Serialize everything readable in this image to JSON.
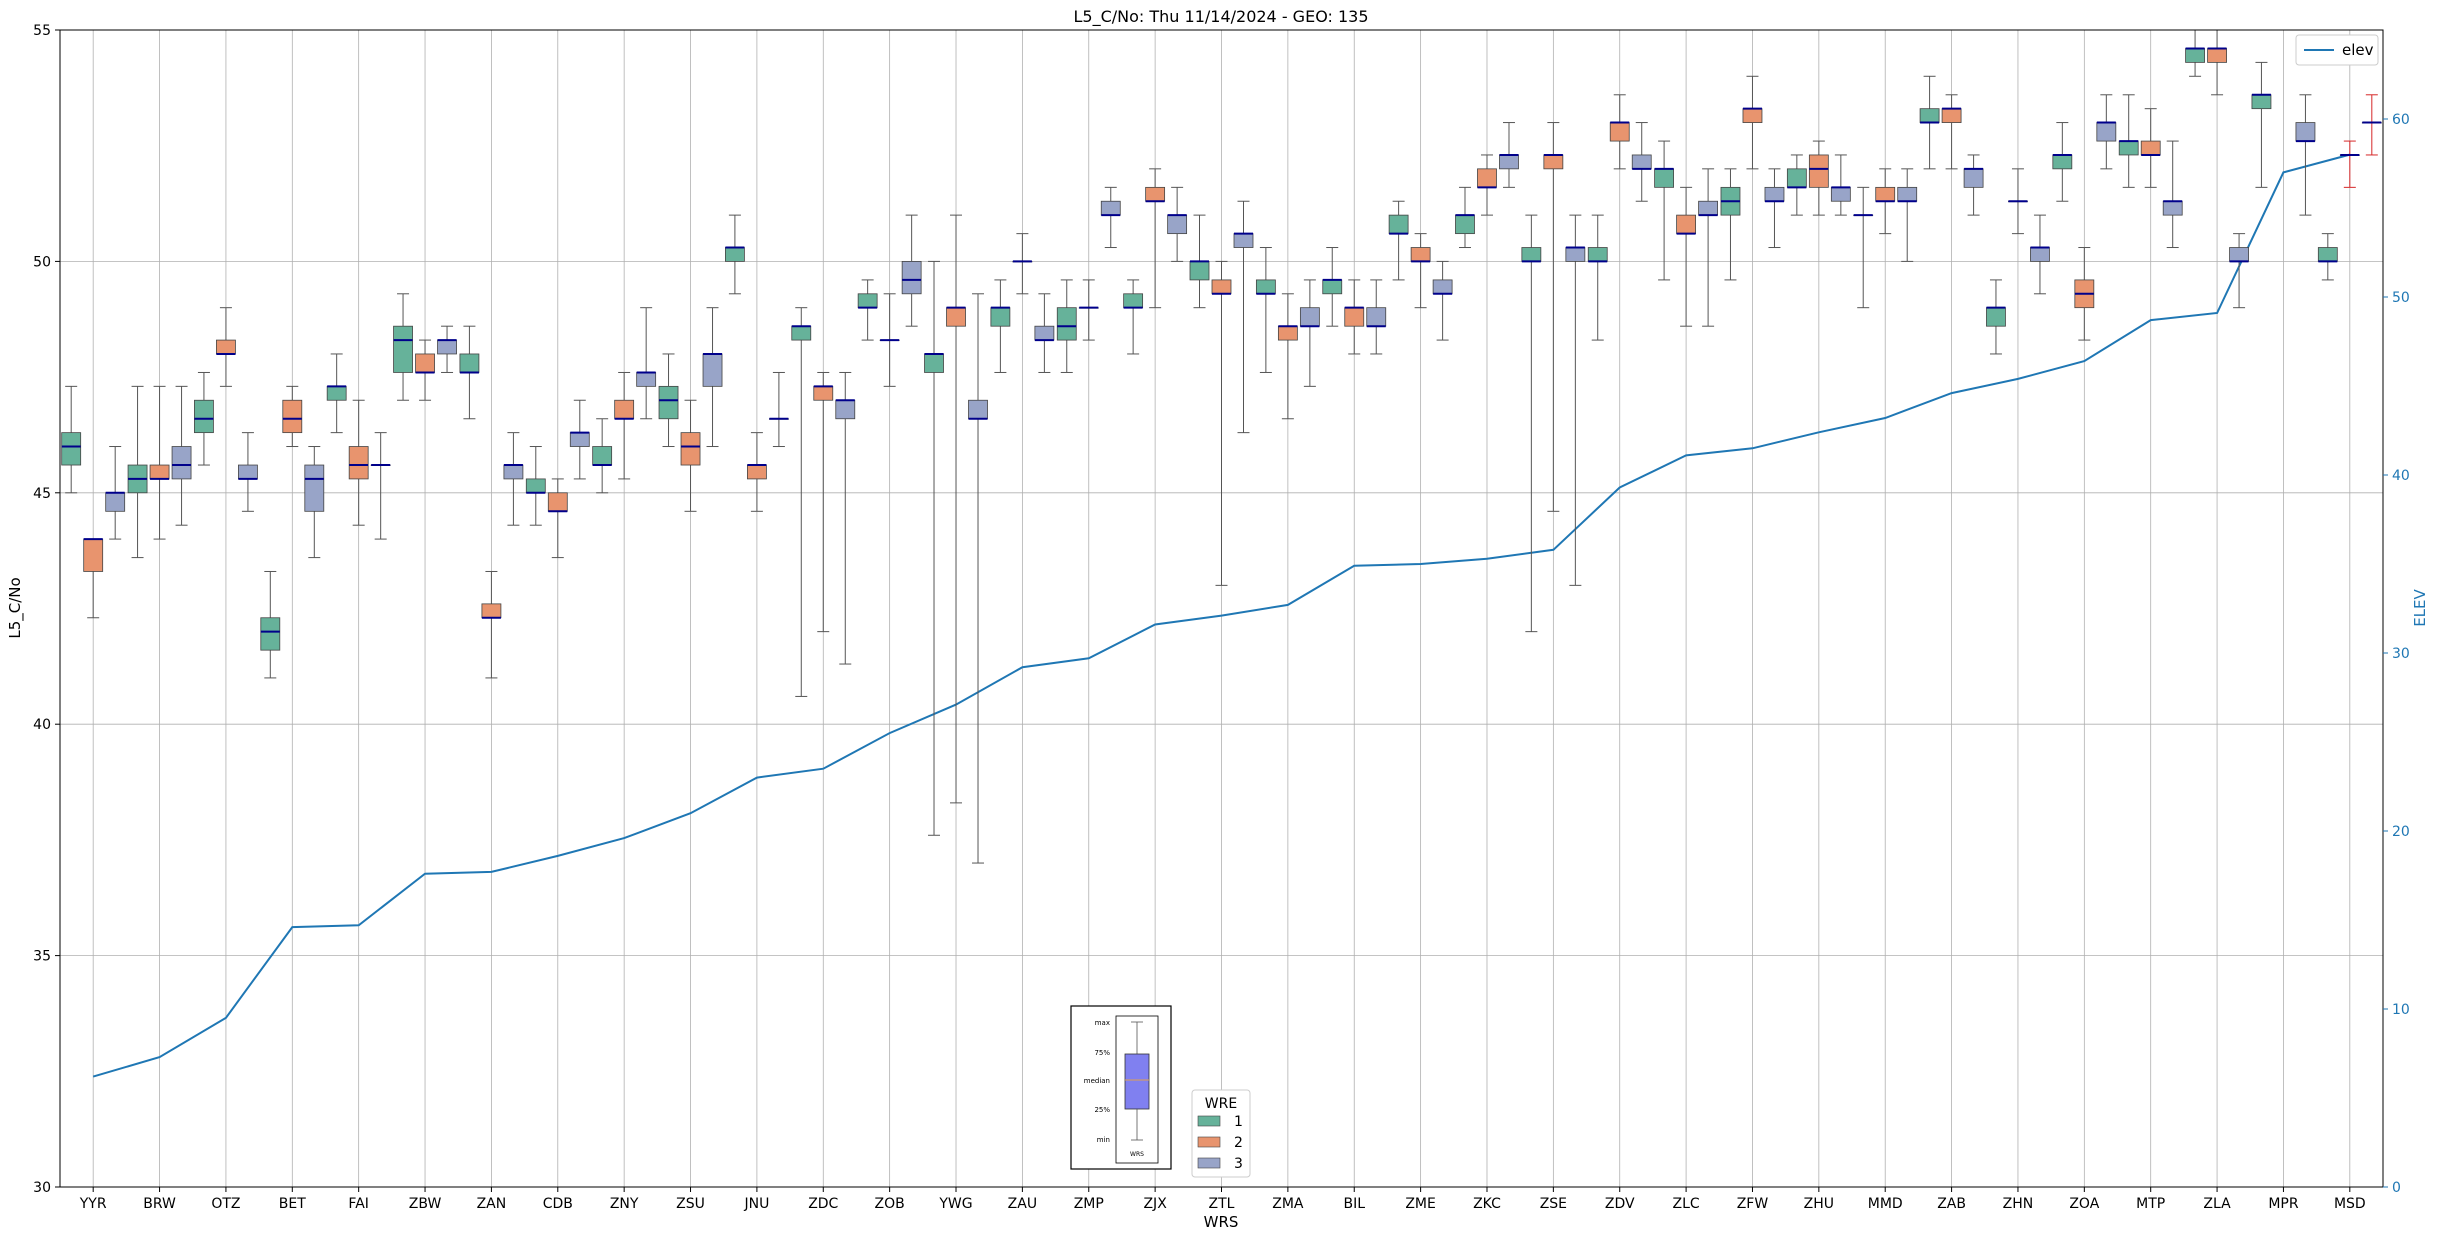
{
  "chart_data": {
    "type": "box+line",
    "title": "L5_C/No: Thu 11/14/2024 - GEO: 135",
    "xlabel": "WRS",
    "ylabel": "L5_C/No",
    "y2label": "ELEV",
    "ylim": [
      30,
      55
    ],
    "y2lim": [
      0,
      65
    ],
    "yticks": [
      30,
      35,
      40,
      45,
      50,
      55
    ],
    "y2ticks": [
      0,
      10,
      20,
      30,
      40,
      50,
      60
    ],
    "grid": true,
    "categories": [
      "YYR",
      "BRW",
      "OTZ",
      "BET",
      "FAI",
      "ZBW",
      "ZAN",
      "CDB",
      "ZNY",
      "ZSU",
      "JNU",
      "ZDC",
      "ZOB",
      "YWG",
      "ZAU",
      "ZMP",
      "ZJX",
      "ZTL",
      "ZMA",
      "BIL",
      "ZME",
      "ZKC",
      "ZSE",
      "ZDV",
      "ZLC",
      "ZFW",
      "ZHU",
      "MMD",
      "ZAB",
      "ZHN",
      "ZOA",
      "MTP",
      "ZLA",
      "MPR",
      "MSD"
    ],
    "elev_series": {
      "name": "elev",
      "values": [
        6.2,
        7.3,
        9.5,
        14.6,
        14.7,
        17.6,
        17.7,
        18.6,
        19.6,
        21.0,
        23.0,
        23.5,
        25.5,
        27.1,
        29.2,
        29.7,
        31.6,
        32.1,
        32.7,
        34.9,
        35.0,
        35.3,
        35.8,
        39.3,
        41.1,
        41.5,
        42.4,
        43.2,
        44.6,
        45.4,
        46.4,
        48.7,
        49.1,
        57.0,
        58.0
      ]
    },
    "wre_series": [
      {
        "name": "1",
        "color": "#66b29a"
      },
      {
        "name": "2",
        "color": "#e8946e"
      },
      {
        "name": "3",
        "color": "#98a4c8"
      }
    ],
    "boxes": [
      {
        "station": "YYR",
        "wre": "1",
        "min": 45.0,
        "q1": 45.6,
        "median": 46.0,
        "q3": 46.3,
        "max": 47.3
      },
      {
        "station": "YYR",
        "wre": "2",
        "min": 42.3,
        "q1": 43.3,
        "median": 44.0,
        "q3": 44.0,
        "max": 44.0
      },
      {
        "station": "YYR",
        "wre": "3",
        "min": 44.0,
        "q1": 44.6,
        "median": 45.0,
        "q3": 45.0,
        "max": 46.0
      },
      {
        "station": "BRW",
        "wre": "1",
        "min": 43.6,
        "q1": 45.0,
        "median": 45.3,
        "q3": 45.6,
        "max": 47.3
      },
      {
        "station": "BRW",
        "wre": "2",
        "min": 44.0,
        "q1": 45.3,
        "median": 45.3,
        "q3": 45.6,
        "max": 47.3
      },
      {
        "station": "BRW",
        "wre": "3",
        "min": 44.3,
        "q1": 45.3,
        "median": 45.6,
        "q3": 46.0,
        "max": 47.3
      },
      {
        "station": "OTZ",
        "wre": "1",
        "min": 45.6,
        "q1": 46.3,
        "median": 46.6,
        "q3": 47.0,
        "max": 47.6
      },
      {
        "station": "OTZ",
        "wre": "2",
        "min": 47.3,
        "q1": 48.0,
        "median": 48.0,
        "q3": 48.3,
        "max": 49.0
      },
      {
        "station": "OTZ",
        "wre": "3",
        "min": 44.6,
        "q1": 45.3,
        "median": 45.3,
        "q3": 45.6,
        "max": 46.3
      },
      {
        "station": "BET",
        "wre": "1",
        "min": 41.0,
        "q1": 41.6,
        "median": 42.0,
        "q3": 42.3,
        "max": 43.3
      },
      {
        "station": "BET",
        "wre": "2",
        "min": 46.0,
        "q1": 46.3,
        "median": 46.6,
        "q3": 47.0,
        "max": 47.3
      },
      {
        "station": "BET",
        "wre": "3",
        "min": 43.6,
        "q1": 44.6,
        "median": 45.3,
        "q3": 45.6,
        "max": 46.0
      },
      {
        "station": "FAI",
        "wre": "1",
        "min": 46.3,
        "q1": 47.0,
        "median": 47.3,
        "q3": 47.3,
        "max": 48.0
      },
      {
        "station": "FAI",
        "wre": "2",
        "min": 44.3,
        "q1": 45.3,
        "median": 45.6,
        "q3": 46.0,
        "max": 47.0
      },
      {
        "station": "FAI",
        "wre": "3",
        "min": 44.0,
        "q1": 45.6,
        "median": 45.6,
        "q3": 45.6,
        "max": 46.3
      },
      {
        "station": "ZBW",
        "wre": "1",
        "min": 47.0,
        "q1": 47.6,
        "median": 48.3,
        "q3": 48.6,
        "max": 49.3
      },
      {
        "station": "ZBW",
        "wre": "2",
        "min": 47.0,
        "q1": 47.6,
        "median": 47.6,
        "q3": 48.0,
        "max": 48.3
      },
      {
        "station": "ZBW",
        "wre": "3",
        "min": 47.6,
        "q1": 48.0,
        "median": 48.3,
        "q3": 48.3,
        "max": 48.6
      },
      {
        "station": "ZAN",
        "wre": "1",
        "min": 46.6,
        "q1": 47.6,
        "median": 47.6,
        "q3": 48.0,
        "max": 48.6
      },
      {
        "station": "ZAN",
        "wre": "2",
        "min": 41.0,
        "q1": 42.3,
        "median": 42.3,
        "q3": 42.6,
        "max": 43.3
      },
      {
        "station": "ZAN",
        "wre": "3",
        "min": 44.3,
        "q1": 45.3,
        "median": 45.6,
        "q3": 45.6,
        "max": 46.3
      },
      {
        "station": "CDB",
        "wre": "1",
        "min": 44.3,
        "q1": 45.0,
        "median": 45.0,
        "q3": 45.3,
        "max": 46.0
      },
      {
        "station": "CDB",
        "wre": "2",
        "min": 43.6,
        "q1": 44.6,
        "median": 44.6,
        "q3": 45.0,
        "max": 45.3
      },
      {
        "station": "CDB",
        "wre": "3",
        "min": 45.3,
        "q1": 46.0,
        "median": 46.3,
        "q3": 46.3,
        "max": 47.0
      },
      {
        "station": "ZNY",
        "wre": "1",
        "min": 45.0,
        "q1": 45.6,
        "median": 45.6,
        "q3": 46.0,
        "max": 46.6
      },
      {
        "station": "ZNY",
        "wre": "2",
        "min": 45.3,
        "q1": 46.6,
        "median": 46.6,
        "q3": 47.0,
        "max": 47.6
      },
      {
        "station": "ZNY",
        "wre": "3",
        "min": 46.6,
        "q1": 47.3,
        "median": 47.6,
        "q3": 47.6,
        "max": 49.0
      },
      {
        "station": "ZSU",
        "wre": "1",
        "min": 46.0,
        "q1": 46.6,
        "median": 47.0,
        "q3": 47.3,
        "max": 48.0
      },
      {
        "station": "ZSU",
        "wre": "2",
        "min": 44.6,
        "q1": 45.6,
        "median": 46.0,
        "q3": 46.3,
        "max": 47.0
      },
      {
        "station": "ZSU",
        "wre": "3",
        "min": 46.0,
        "q1": 47.3,
        "median": 48.0,
        "q3": 48.0,
        "max": 49.0
      },
      {
        "station": "JNU",
        "wre": "1",
        "min": 49.3,
        "q1": 50.0,
        "median": 50.3,
        "q3": 50.3,
        "max": 51.0
      },
      {
        "station": "JNU",
        "wre": "2",
        "min": 44.6,
        "q1": 45.3,
        "median": 45.6,
        "q3": 45.6,
        "max": 46.3
      },
      {
        "station": "JNU",
        "wre": "3",
        "min": 46.0,
        "q1": 46.6,
        "median": 46.6,
        "q3": 46.6,
        "max": 47.6
      },
      {
        "station": "ZDC",
        "wre": "1",
        "min": 40.6,
        "q1": 48.3,
        "median": 48.6,
        "q3": 48.6,
        "max": 49.0
      },
      {
        "station": "ZDC",
        "wre": "2",
        "min": 42.0,
        "q1": 47.0,
        "median": 47.3,
        "q3": 47.3,
        "max": 47.6
      },
      {
        "station": "ZDC",
        "wre": "3",
        "min": 41.3,
        "q1": 46.6,
        "median": 47.0,
        "q3": 47.0,
        "max": 47.6
      },
      {
        "station": "ZOB",
        "wre": "1",
        "min": 48.3,
        "q1": 49.0,
        "median": 49.0,
        "q3": 49.3,
        "max": 49.6
      },
      {
        "station": "ZOB",
        "wre": "2",
        "min": 47.3,
        "q1": 48.3,
        "median": 48.3,
        "q3": 48.3,
        "max": 49.3
      },
      {
        "station": "ZOB",
        "wre": "3",
        "min": 48.6,
        "q1": 49.3,
        "median": 49.6,
        "q3": 50.0,
        "max": 51.0
      },
      {
        "station": "YWG",
        "wre": "1",
        "min": 37.6,
        "q1": 47.6,
        "median": 48.0,
        "q3": 48.0,
        "max": 50.0
      },
      {
        "station": "YWG",
        "wre": "2",
        "min": 38.3,
        "q1": 48.6,
        "median": 49.0,
        "q3": 49.0,
        "max": 51.0
      },
      {
        "station": "YWG",
        "wre": "3",
        "min": 37.0,
        "q1": 46.6,
        "median": 46.6,
        "q3": 47.0,
        "max": 49.3
      },
      {
        "station": "ZAU",
        "wre": "1",
        "min": 47.6,
        "q1": 48.6,
        "median": 49.0,
        "q3": 49.0,
        "max": 49.6
      },
      {
        "station": "ZAU",
        "wre": "2",
        "min": 49.3,
        "q1": 50.0,
        "median": 50.0,
        "q3": 50.0,
        "max": 50.6
      },
      {
        "station": "ZAU",
        "wre": "3",
        "min": 47.6,
        "q1": 48.3,
        "median": 48.3,
        "q3": 48.6,
        "max": 49.3
      },
      {
        "station": "ZMP",
        "wre": "1",
        "min": 47.6,
        "q1": 48.3,
        "median": 48.6,
        "q3": 49.0,
        "max": 49.6
      },
      {
        "station": "ZMP",
        "wre": "2",
        "min": 48.3,
        "q1": 49.0,
        "median": 49.0,
        "q3": 49.0,
        "max": 49.6
      },
      {
        "station": "ZMP",
        "wre": "3",
        "min": 50.3,
        "q1": 51.0,
        "median": 51.0,
        "q3": 51.3,
        "max": 51.6
      },
      {
        "station": "ZJX",
        "wre": "1",
        "min": 48.0,
        "q1": 49.0,
        "median": 49.0,
        "q3": 49.3,
        "max": 49.6
      },
      {
        "station": "ZJX",
        "wre": "2",
        "min": 49.0,
        "q1": 51.3,
        "median": 51.3,
        "q3": 51.6,
        "max": 52.0
      },
      {
        "station": "ZJX",
        "wre": "3",
        "min": 50.0,
        "q1": 50.6,
        "median": 51.0,
        "q3": 51.0,
        "max": 51.6
      },
      {
        "station": "ZTL",
        "wre": "1",
        "min": 49.0,
        "q1": 49.6,
        "median": 50.0,
        "q3": 50.0,
        "max": 51.0
      },
      {
        "station": "ZTL",
        "wre": "2",
        "min": 43.0,
        "q1": 49.3,
        "median": 49.3,
        "q3": 49.6,
        "max": 50.0
      },
      {
        "station": "ZTL",
        "wre": "3",
        "min": 46.3,
        "q1": 50.3,
        "median": 50.6,
        "q3": 50.6,
        "max": 51.3
      },
      {
        "station": "ZMA",
        "wre": "1",
        "min": 47.6,
        "q1": 49.3,
        "median": 49.3,
        "q3": 49.6,
        "max": 50.3
      },
      {
        "station": "ZMA",
        "wre": "2",
        "min": 46.6,
        "q1": 48.3,
        "median": 48.6,
        "q3": 48.6,
        "max": 49.3
      },
      {
        "station": "ZMA",
        "wre": "3",
        "min": 47.3,
        "q1": 48.6,
        "median": 48.6,
        "q3": 49.0,
        "max": 49.6
      },
      {
        "station": "BIL",
        "wre": "1",
        "min": 48.6,
        "q1": 49.3,
        "median": 49.6,
        "q3": 49.6,
        "max": 50.3
      },
      {
        "station": "BIL",
        "wre": "2",
        "min": 48.0,
        "q1": 48.6,
        "median": 49.0,
        "q3": 49.0,
        "max": 49.6
      },
      {
        "station": "BIL",
        "wre": "3",
        "min": 48.0,
        "q1": 48.6,
        "median": 48.6,
        "q3": 49.0,
        "max": 49.6
      },
      {
        "station": "ZME",
        "wre": "1",
        "min": 49.6,
        "q1": 50.6,
        "median": 50.6,
        "q3": 51.0,
        "max": 51.3
      },
      {
        "station": "ZME",
        "wre": "2",
        "min": 49.0,
        "q1": 50.0,
        "median": 50.0,
        "q3": 50.3,
        "max": 50.6
      },
      {
        "station": "ZME",
        "wre": "3",
        "min": 48.3,
        "q1": 49.3,
        "median": 49.3,
        "q3": 49.6,
        "max": 50.0
      },
      {
        "station": "ZKC",
        "wre": "1",
        "min": 50.3,
        "q1": 50.6,
        "median": 51.0,
        "q3": 51.0,
        "max": 51.6
      },
      {
        "station": "ZKC",
        "wre": "2",
        "min": 51.0,
        "q1": 51.6,
        "median": 51.6,
        "q3": 52.0,
        "max": 52.3
      },
      {
        "station": "ZKC",
        "wre": "3",
        "min": 51.6,
        "q1": 52.0,
        "median": 52.3,
        "q3": 52.3,
        "max": 53.0
      },
      {
        "station": "ZSE",
        "wre": "1",
        "min": 42.0,
        "q1": 50.0,
        "median": 50.0,
        "q3": 50.3,
        "max": 51.0
      },
      {
        "station": "ZSE",
        "wre": "2",
        "min": 44.6,
        "q1": 52.0,
        "median": 52.3,
        "q3": 52.3,
        "max": 53.0
      },
      {
        "station": "ZSE",
        "wre": "3",
        "min": 43.0,
        "q1": 50.0,
        "median": 50.3,
        "q3": 50.3,
        "max": 51.0
      },
      {
        "station": "ZDV",
        "wre": "1",
        "min": 48.3,
        "q1": 50.0,
        "median": 50.0,
        "q3": 50.3,
        "max": 51.0
      },
      {
        "station": "ZDV",
        "wre": "2",
        "min": 52.0,
        "q1": 52.6,
        "median": 53.0,
        "q3": 53.0,
        "max": 53.6
      },
      {
        "station": "ZDV",
        "wre": "3",
        "min": 51.3,
        "q1": 52.0,
        "median": 52.0,
        "q3": 52.3,
        "max": 53.0
      },
      {
        "station": "ZLC",
        "wre": "1",
        "min": 49.6,
        "q1": 51.6,
        "median": 52.0,
        "q3": 52.0,
        "max": 52.6
      },
      {
        "station": "ZLC",
        "wre": "2",
        "min": 48.6,
        "q1": 50.6,
        "median": 50.6,
        "q3": 51.0,
        "max": 51.6
      },
      {
        "station": "ZLC",
        "wre": "3",
        "min": 48.6,
        "q1": 51.0,
        "median": 51.0,
        "q3": 51.3,
        "max": 52.0
      },
      {
        "station": "ZFW",
        "wre": "1",
        "min": 49.6,
        "q1": 51.0,
        "median": 51.3,
        "q3": 51.6,
        "max": 52.0
      },
      {
        "station": "ZFW",
        "wre": "2",
        "min": 52.0,
        "q1": 53.0,
        "median": 53.3,
        "q3": 53.3,
        "max": 54.0
      },
      {
        "station": "ZFW",
        "wre": "3",
        "min": 50.3,
        "q1": 51.3,
        "median": 51.3,
        "q3": 51.6,
        "max": 52.0
      },
      {
        "station": "ZHU",
        "wre": "1",
        "min": 51.0,
        "q1": 51.6,
        "median": 51.6,
        "q3": 52.0,
        "max": 52.3
      },
      {
        "station": "ZHU",
        "wre": "2",
        "min": 51.0,
        "q1": 51.6,
        "median": 52.0,
        "q3": 52.3,
        "max": 52.6
      },
      {
        "station": "ZHU",
        "wre": "3",
        "min": 51.0,
        "q1": 51.3,
        "median": 51.6,
        "q3": 51.6,
        "max": 52.3
      },
      {
        "station": "MMD",
        "wre": "1",
        "min": 49.0,
        "q1": 51.0,
        "median": 51.0,
        "q3": 51.0,
        "max": 51.6
      },
      {
        "station": "MMD",
        "wre": "2",
        "min": 50.6,
        "q1": 51.3,
        "median": 51.3,
        "q3": 51.6,
        "max": 52.0
      },
      {
        "station": "MMD",
        "wre": "3",
        "min": 50.0,
        "q1": 51.3,
        "median": 51.3,
        "q3": 51.6,
        "max": 52.0
      },
      {
        "station": "ZAB",
        "wre": "1",
        "min": 52.0,
        "q1": 53.0,
        "median": 53.0,
        "q3": 53.3,
        "max": 54.0
      },
      {
        "station": "ZAB",
        "wre": "2",
        "min": 52.0,
        "q1": 53.0,
        "median": 53.3,
        "q3": 53.3,
        "max": 53.6
      },
      {
        "station": "ZAB",
        "wre": "3",
        "min": 51.0,
        "q1": 51.6,
        "median": 52.0,
        "q3": 52.0,
        "max": 52.3
      },
      {
        "station": "ZHN",
        "wre": "1",
        "min": 48.0,
        "q1": 48.6,
        "median": 49.0,
        "q3": 49.0,
        "max": 49.6
      },
      {
        "station": "ZHN",
        "wre": "2",
        "min": 50.6,
        "q1": 51.3,
        "median": 51.3,
        "q3": 51.3,
        "max": 52.0
      },
      {
        "station": "ZHN",
        "wre": "3",
        "min": 49.3,
        "q1": 50.0,
        "median": 50.3,
        "q3": 50.3,
        "max": 51.0
      },
      {
        "station": "ZOA",
        "wre": "1",
        "min": 51.3,
        "q1": 52.0,
        "median": 52.3,
        "q3": 52.3,
        "max": 53.0
      },
      {
        "station": "ZOA",
        "wre": "2",
        "min": 48.3,
        "q1": 49.0,
        "median": 49.3,
        "q3": 49.6,
        "max": 50.3
      },
      {
        "station": "ZOA",
        "wre": "3",
        "min": 52.0,
        "q1": 52.6,
        "median": 53.0,
        "q3": 53.0,
        "max": 53.6
      },
      {
        "station": "MTP",
        "wre": "1",
        "min": 51.6,
        "q1": 52.3,
        "median": 52.6,
        "q3": 52.6,
        "max": 53.6
      },
      {
        "station": "MTP",
        "wre": "2",
        "min": 51.6,
        "q1": 52.3,
        "median": 52.3,
        "q3": 52.6,
        "max": 53.3
      },
      {
        "station": "MTP",
        "wre": "3",
        "min": 50.3,
        "q1": 51.0,
        "median": 51.3,
        "q3": 51.3,
        "max": 52.6
      },
      {
        "station": "ZLA",
        "wre": "1",
        "min": 54.0,
        "q1": 54.3,
        "median": 54.6,
        "q3": 54.6,
        "max": 55.0
      },
      {
        "station": "ZLA",
        "wre": "2",
        "min": 53.6,
        "q1": 54.3,
        "median": 54.6,
        "q3": 54.6,
        "max": 55.0
      },
      {
        "station": "ZLA",
        "wre": "3",
        "min": 49.0,
        "q1": 50.0,
        "median": 50.0,
        "q3": 50.3,
        "max": 50.6
      },
      {
        "station": "MPR",
        "wre": "1",
        "min": 51.6,
        "q1": 53.3,
        "median": 53.6,
        "q3": 53.6,
        "max": 54.3
      },
      {
        "station": "MPR",
        "wre": "2",
        "min": null,
        "q1": null,
        "median": null,
        "q3": null,
        "max": null
      },
      {
        "station": "MPR",
        "wre": "3",
        "min": 51.0,
        "q1": 52.6,
        "median": 52.6,
        "q3": 53.0,
        "max": 53.6
      },
      {
        "station": "MSD",
        "wre": "1",
        "min": 49.6,
        "q1": 50.0,
        "median": 50.0,
        "q3": 50.3,
        "max": 50.6
      },
      {
        "station": "MSD",
        "wre": "2",
        "min": 51.6,
        "q1": 52.3,
        "median": 52.3,
        "q3": 52.3,
        "max": 52.6
      },
      {
        "station": "MSD",
        "wre": "3",
        "min": 52.3,
        "q1": 53.0,
        "median": 53.0,
        "q3": 53.0,
        "max": 53.6
      }
    ],
    "legend_elev": {
      "label": "elev",
      "placement": "top-right"
    },
    "legend_wre": {
      "title": "WRE",
      "labels": [
        "1",
        "2",
        "3"
      ],
      "placement": "bottom-center"
    },
    "inset_key": {
      "labels": [
        "max",
        "75%",
        "median",
        "25%",
        "min"
      ],
      "xlabel": "WRS",
      "placement": "bottom-center"
    }
  }
}
